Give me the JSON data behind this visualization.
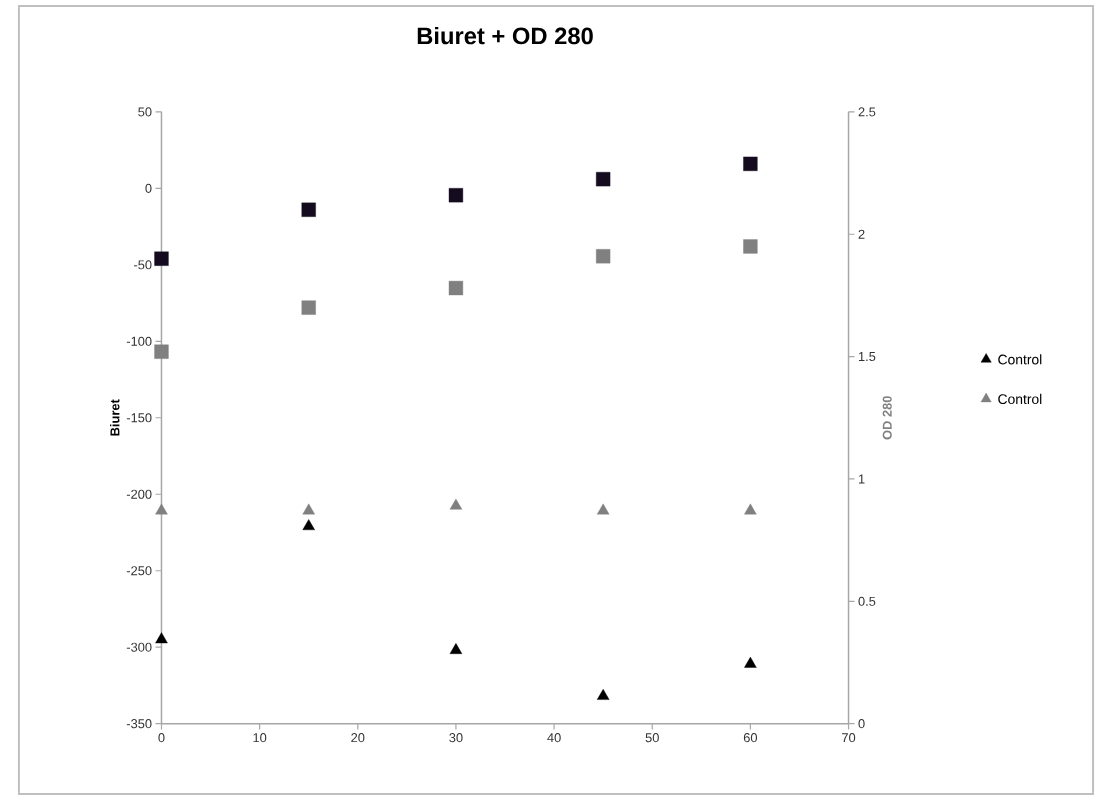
{
  "chart_data": {
    "type": "scatter",
    "title": "Biuret + OD 280",
    "ylabel": "Biuret",
    "y2label": "OD 280",
    "x": [
      0,
      15,
      30,
      45,
      60
    ],
    "series": [
      {
        "name": "Control",
        "color": "#000000",
        "marker": "triangle",
        "values": [
          -295,
          -221,
          -302,
          -332,
          -311
        ]
      },
      {
        "color": "#140c1e",
        "marker": "square",
        "values": [
          -46,
          -14,
          -4.5,
          6,
          16
        ]
      },
      {
        "name": "Control",
        "color": "#808080",
        "marker": "triangle",
        "axis": "y2",
        "values": [
          0.87,
          0.87,
          0.89,
          0.87,
          0.87
        ]
      },
      {
        "color": "#808080",
        "marker": "square",
        "axis": "y2",
        "values": [
          1.52,
          1.7,
          1.78,
          1.91,
          1.95
        ]
      }
    ],
    "xlim": [
      0,
      70
    ],
    "xticks": [
      0,
      10,
      20,
      30,
      40,
      50,
      60,
      70
    ],
    "ylim": [
      -350,
      50
    ],
    "yticks": [
      -350,
      -300,
      -250,
      -200,
      -150,
      -100,
      -50,
      0,
      50
    ],
    "y2lim": [
      0,
      2.5
    ],
    "y2ticks": [
      0,
      0.5,
      1,
      1.5,
      2,
      2.5
    ],
    "legend": "right"
  }
}
